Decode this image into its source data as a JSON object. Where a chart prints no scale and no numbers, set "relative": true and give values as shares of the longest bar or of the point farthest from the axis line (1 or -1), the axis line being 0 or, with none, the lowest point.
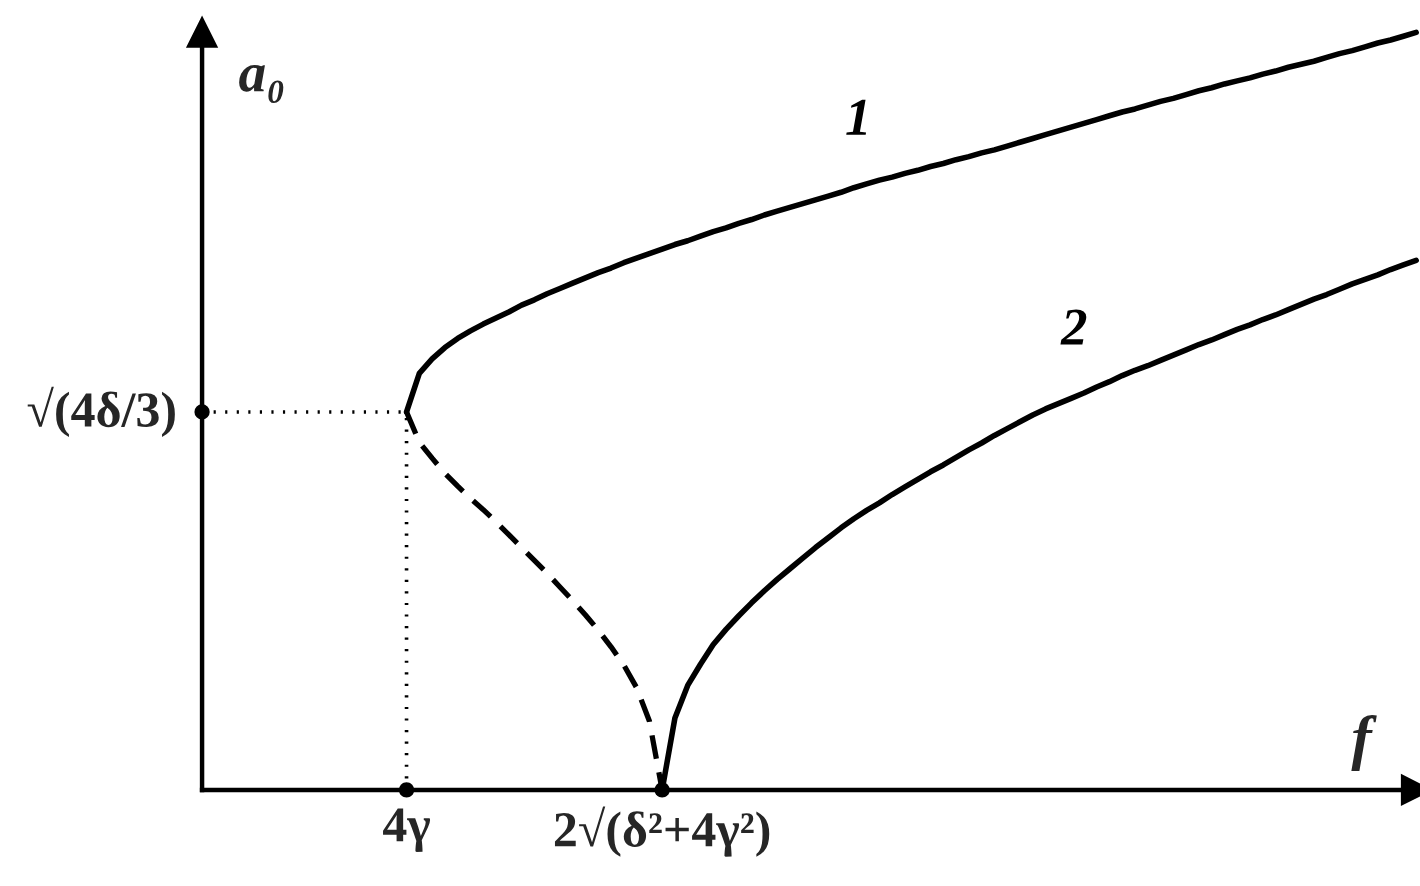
{
  "chart_data": {
    "type": "line",
    "relative": true,
    "xlabel": "f",
    "ylabel": "a₀",
    "categories": [
      null,
      null,
      null,
      null,
      null,
      null,
      null,
      null,
      null,
      null,
      null,
      null,
      null,
      null,
      null,
      null,
      "4γ",
      null,
      null,
      null,
      null,
      null,
      null,
      null,
      null,
      null,
      null,
      null,
      null,
      null,
      null,
      null,
      null,
      null,
      null,
      null,
      "2√(δ²+4γ²)",
      null,
      null,
      null,
      null,
      null,
      null,
      null,
      null,
      null,
      null,
      null,
      null,
      null,
      null,
      null,
      null,
      null,
      null,
      null,
      null,
      null,
      null,
      null,
      null,
      null,
      null,
      null,
      null,
      null,
      null,
      null,
      null,
      null,
      null,
      null,
      null,
      null,
      null,
      null,
      null,
      null,
      null,
      null,
      null,
      null,
      null,
      null,
      null,
      null,
      null,
      null,
      null,
      null,
      null,
      null,
      null,
      null,
      null,
      null
    ],
    "series": [
      {
        "name": "1",
        "color": "#000000",
        "values": [
          null,
          null,
          null,
          null,
          null,
          null,
          null,
          null,
          null,
          null,
          null,
          null,
          null,
          null,
          null,
          null,
          0.499,
          0.55,
          0.569,
          0.584,
          0.596,
          0.606,
          0.615,
          0.623,
          0.631,
          0.64,
          0.647,
          0.655,
          0.662,
          0.669,
          0.676,
          0.683,
          0.689,
          0.696,
          0.702,
          0.708,
          0.714,
          0.72,
          0.725,
          0.731,
          0.737,
          0.742,
          0.748,
          0.753,
          0.759,
          0.764,
          0.769,
          0.774,
          0.779,
          0.784,
          0.789,
          0.795,
          0.8,
          0.805,
          0.809,
          0.814,
          0.818,
          0.823,
          0.827,
          0.832,
          0.836,
          0.841,
          0.845,
          0.85,
          0.855,
          0.86,
          0.865,
          0.87,
          0.875,
          0.88,
          0.885,
          0.89,
          0.895,
          0.899,
          0.904,
          0.909,
          0.913,
          0.918,
          0.923,
          0.927,
          0.932,
          0.936,
          0.94,
          0.945,
          0.949,
          0.954,
          0.958,
          0.962,
          0.967,
          0.972,
          0.976,
          0.981,
          0.986,
          0.99,
          0.995,
          1.0
        ]
      },
      {
        "color": "#000000",
        "line_style": "dashed",
        "values": [
          null,
          null,
          null,
          null,
          null,
          null,
          null,
          null,
          null,
          null,
          null,
          null,
          null,
          null,
          null,
          null,
          0.499,
          0.459,
          0.438,
          0.418,
          0.401,
          0.385,
          0.37,
          0.354,
          0.337,
          0.32,
          0.303,
          0.286,
          0.268,
          0.25,
          0.231,
          0.211,
          0.189,
          0.165,
          0.135,
          0.091,
          0.0,
          null,
          null,
          null,
          null,
          null,
          null,
          null,
          null,
          null,
          null,
          null,
          null,
          null,
          null,
          null,
          null,
          null,
          null,
          null,
          null,
          null,
          null,
          null,
          null,
          null,
          null,
          null,
          null,
          null,
          null,
          null,
          null,
          null,
          null,
          null,
          null,
          null,
          null,
          null,
          null,
          null,
          null,
          null,
          null,
          null,
          null,
          null,
          null,
          null,
          null,
          null,
          null,
          null,
          null,
          null,
          null,
          null,
          null,
          null
        ]
      },
      {
        "name": "2",
        "color": "#000000",
        "values": [
          null,
          null,
          null,
          null,
          null,
          null,
          null,
          null,
          null,
          null,
          null,
          null,
          null,
          null,
          null,
          null,
          null,
          null,
          null,
          null,
          null,
          null,
          null,
          null,
          null,
          null,
          null,
          null,
          null,
          null,
          null,
          null,
          null,
          null,
          null,
          null,
          0.0,
          0.095,
          0.138,
          0.166,
          0.192,
          0.212,
          0.23,
          0.247,
          0.263,
          0.278,
          0.292,
          0.306,
          0.32,
          0.333,
          0.346,
          0.358,
          0.369,
          0.379,
          0.39,
          0.4,
          0.41,
          0.42,
          0.429,
          0.439,
          0.449,
          0.458,
          0.468,
          0.477,
          0.486,
          0.495,
          0.503,
          0.51,
          0.517,
          0.524,
          0.532,
          0.539,
          0.547,
          0.554,
          0.56,
          0.567,
          0.574,
          0.581,
          0.588,
          0.594,
          0.601,
          0.608,
          0.614,
          0.621,
          0.627,
          0.634,
          0.641,
          0.648,
          0.654,
          0.661,
          0.668,
          0.674,
          0.68,
          0.687,
          0.693,
          0.699
        ]
      },
      {
        "type": "scatter",
        "color": "#000000",
        "marker": "circle",
        "x": [
          "4γ",
          "2√(δ²+4γ²)"
        ],
        "values": [
          0,
          0
        ]
      }
    ],
    "ref_lines": [
      {
        "axis": "y",
        "value": 0.499,
        "label": "√(4δ/3)",
        "line_style": "dotted",
        "color": "#000000"
      },
      {
        "axis": "x",
        "value": "4γ",
        "line_style": "dotted",
        "color": "#000000"
      }
    ]
  }
}
